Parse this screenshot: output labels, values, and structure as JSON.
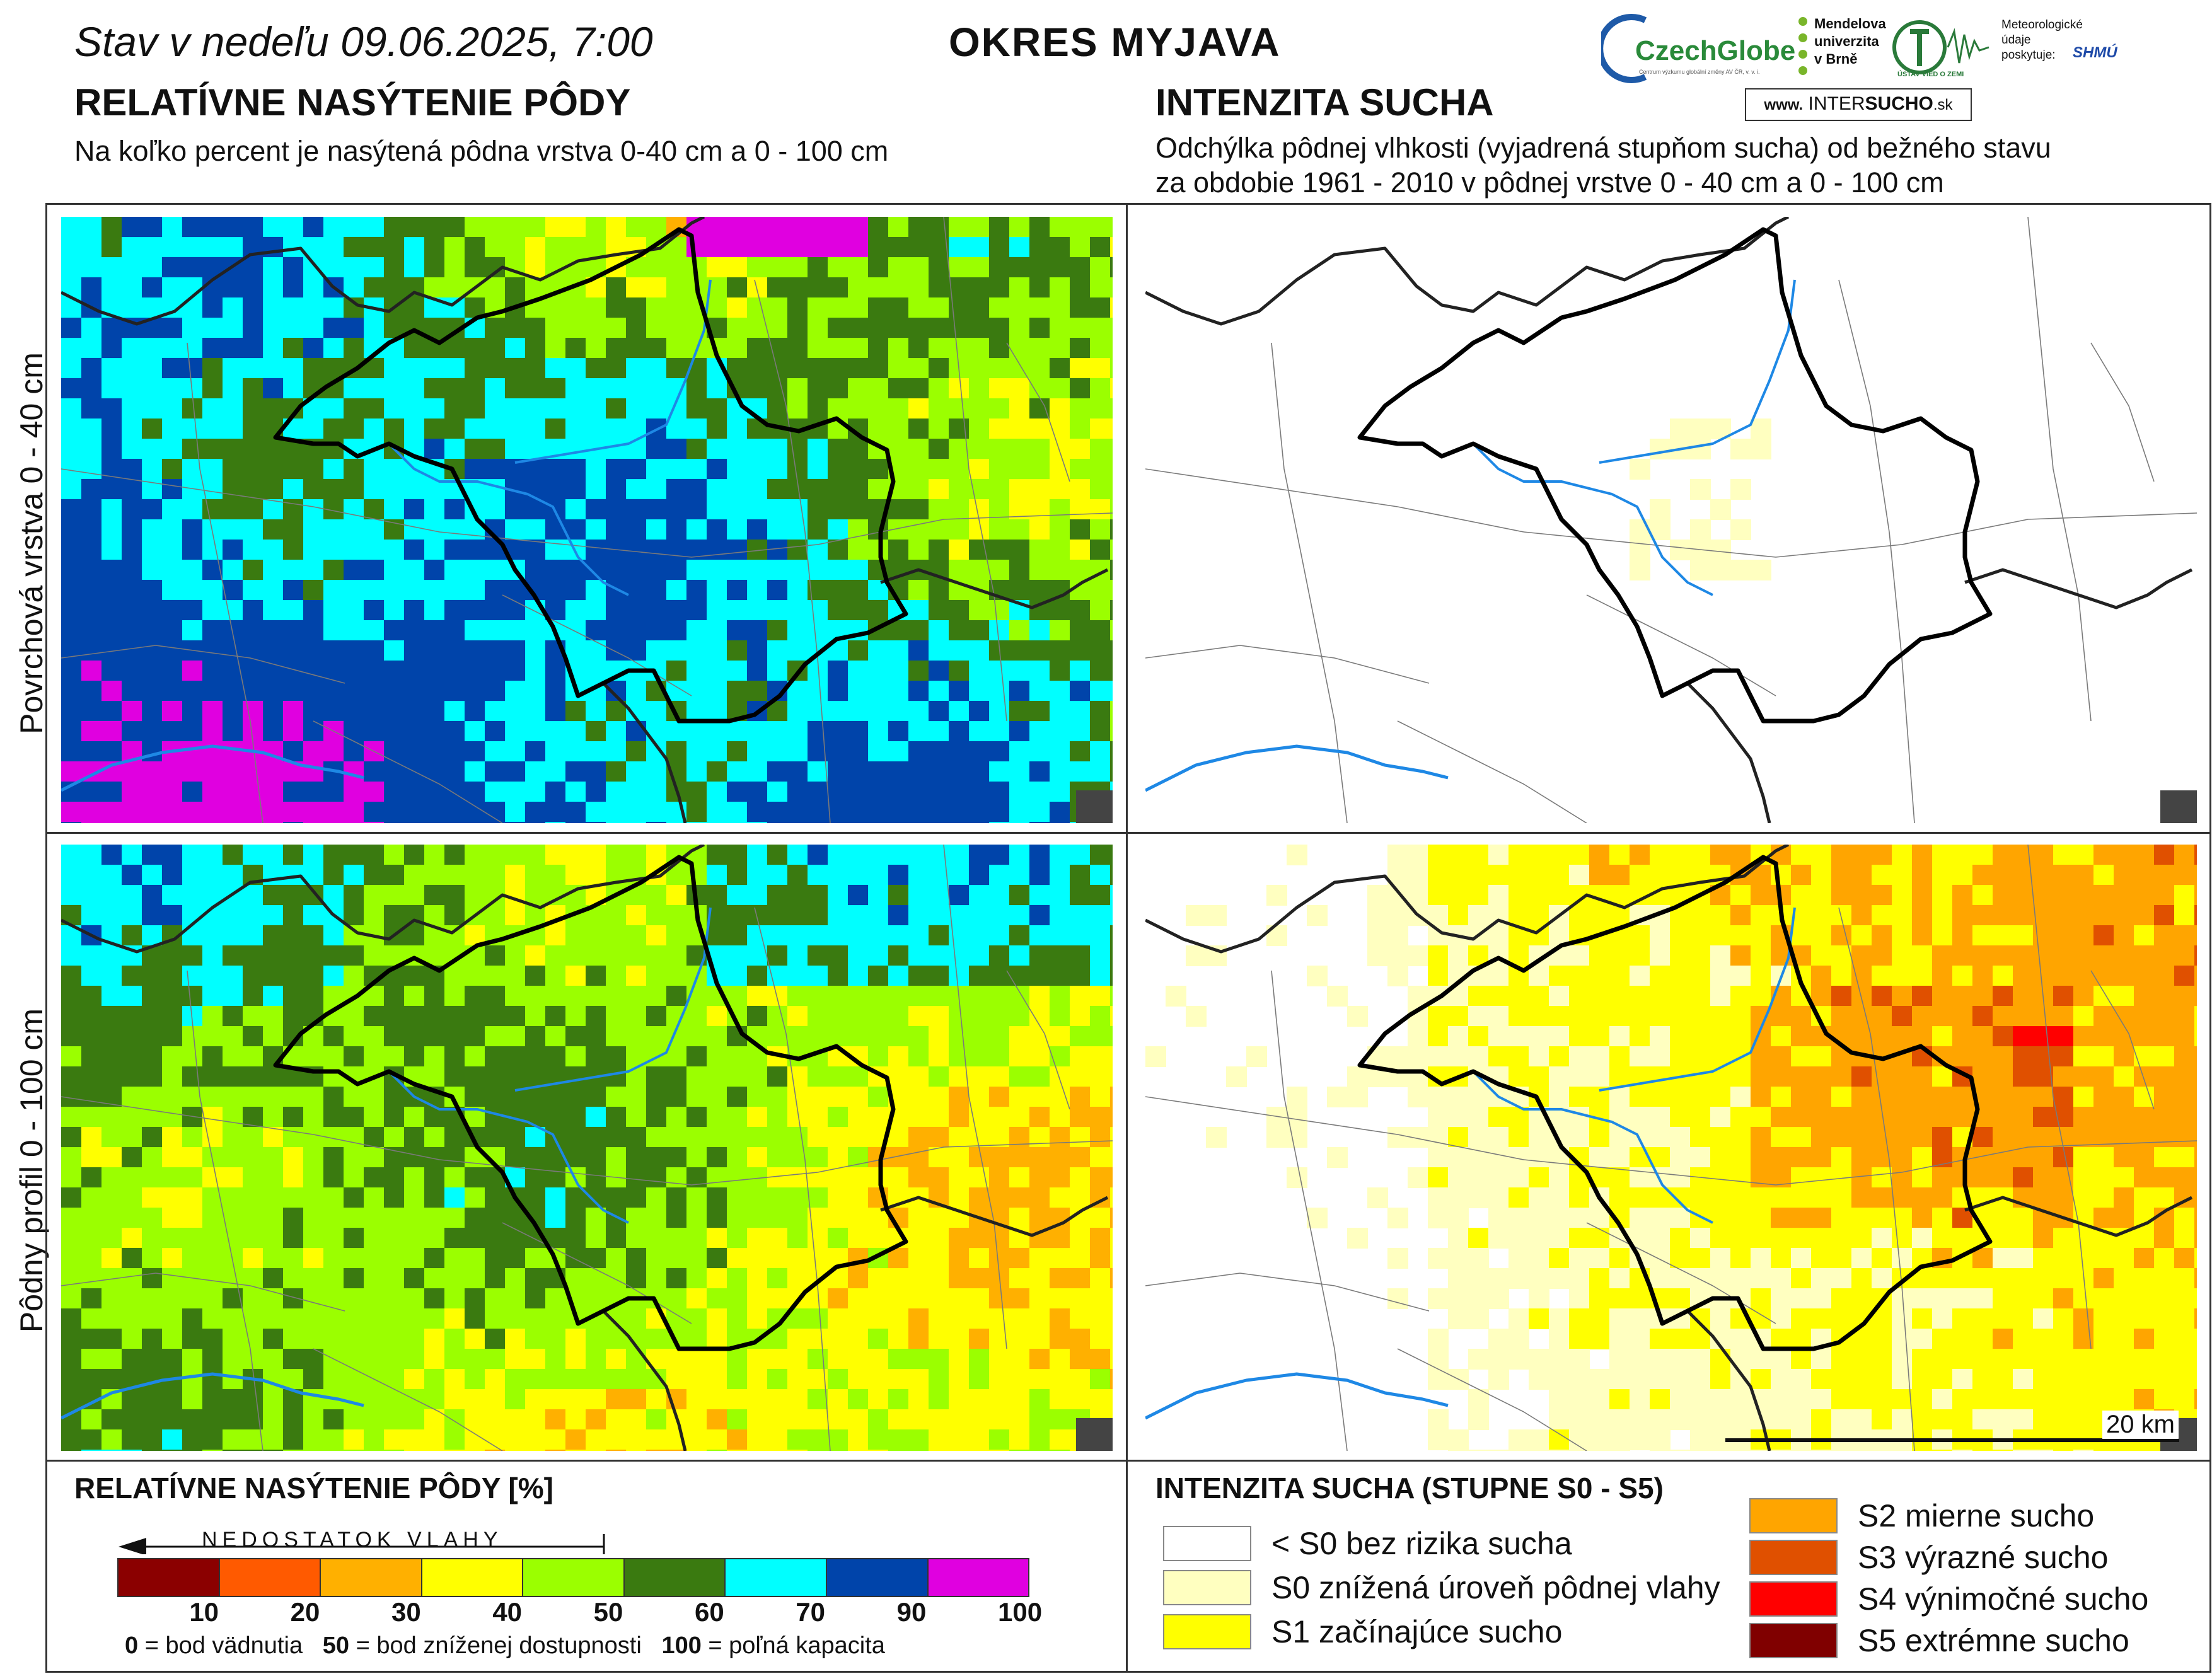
{
  "header": {
    "date_line": "Stav v nedeľu 09.06.2025, 7:00",
    "district": "OKRES  MYJAVA"
  },
  "left_section": {
    "title": "RELATÍVNE NASÝTENIE PÔDY",
    "subtitle": "Na koľko percent je nasýtená pôdna vrstva 0-40 cm a 0 - 100 cm"
  },
  "right_section": {
    "title": "INTENZITA SUCHA",
    "subtitle_line1": "Odchýlka pôdnej vlhkosti (vyjadrená stupňom sucha) od bežného stavu",
    "subtitle_line2": "za obdobie 1961 - 2010 v pôdnej vrstve 0 - 40 cm a 0 - 100 cm"
  },
  "logos": {
    "czechglobe": "CzechGlobe",
    "czechglobe_sub": "Centrum výzkumu globální změny AV ČR, v. v. i.",
    "mendel": [
      "Mendelova",
      "univerzita",
      "v Brně"
    ],
    "ustav": "ÚSTAV VIED O ZEMI",
    "meteo": [
      "Meteorologické",
      "údaje",
      "poskytuje:"
    ],
    "shmu": "SHMÚ",
    "intersucho_prefix": "www.",
    "intersucho_inter": "INTER",
    "intersucho_sucho": "SUCHO",
    "intersucho_suffix": ".sk"
  },
  "row_labels": {
    "top": "Povrchová vrstva 0 - 40 cm",
    "bottom": "Pôdny profil 0 - 100 cm"
  },
  "scale_bar": "20 km",
  "saturation_legend": {
    "title": "RELATÍVNE NASÝTENIE PÔDY [%]",
    "arrow_label": "NEDOSTATOK VLAHY",
    "colors": [
      "#8b0000",
      "#ff5a00",
      "#ffb000",
      "#ffff00",
      "#9bff00",
      "#3a7a10",
      "#00ffff",
      "#0044aa",
      "#e000e0"
    ],
    "ticks": [
      "10",
      "20",
      "30",
      "40",
      "50",
      "60",
      "70",
      "90",
      "100"
    ],
    "note_0_value": "0",
    "note_0_text": " = bod vädnutia",
    "note_50_value": "50",
    "note_50_text": " = bod zníženej dostupnosti",
    "note_100_value": "100",
    "note_100_text": " = poľná kapacita"
  },
  "drought_legend": {
    "title": "INTENZITA SUCHA (STUPNE S0 - S5)",
    "items_left": [
      {
        "label": "< S0 bez rizika sucha",
        "color": "#ffffff"
      },
      {
        "label": "S0 znížená úroveň pôdnej vlahy",
        "color": "#ffffc0"
      },
      {
        "label": "S1 začínajúce sucho",
        "color": "#ffff00"
      }
    ],
    "items_right": [
      {
        "label": "S2 mierne sucho",
        "color": "#ffa500"
      },
      {
        "label": "S3 výrazné sucho",
        "color": "#e05000"
      },
      {
        "label": "S4 výnimočné sucho",
        "color": "#ff0000"
      },
      {
        "label": "S5 extrémne sucho",
        "color": "#800000"
      }
    ]
  }
}
